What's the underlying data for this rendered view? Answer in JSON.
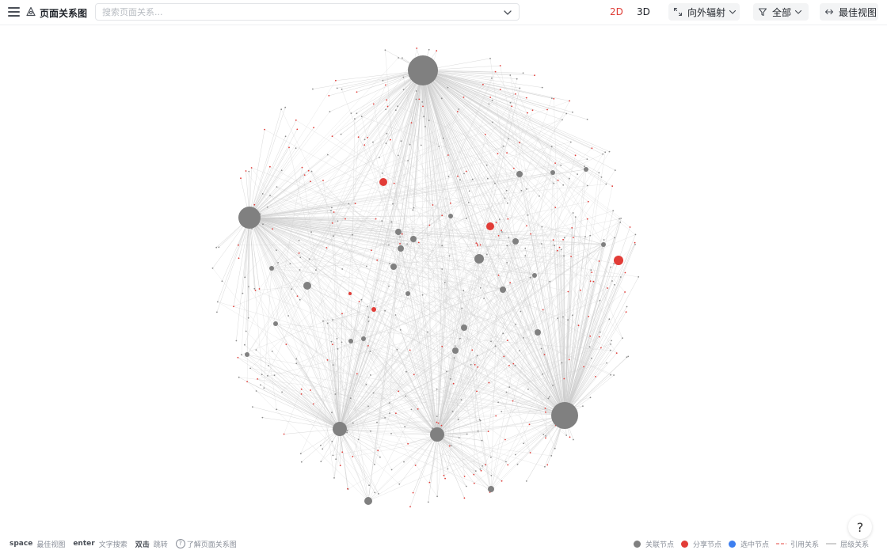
{
  "header": {
    "title": "页面关系图",
    "search_placeholder": "搜索页面关系...",
    "mode_2d": "2D",
    "mode_3d": "3D",
    "direction_label": "向外辐射",
    "filter_label": "全部",
    "best_view_label": "最佳视图"
  },
  "icons": {
    "menu": "hamburger-menu-icon",
    "app": "graph-icon",
    "search_dropdown": "chevron-down-icon",
    "direction": "radiate-icon",
    "filter": "filter-icon",
    "best_view": "arrows-horizontal-icon",
    "help": "question-icon"
  },
  "shortcuts": [
    {
      "key": "space",
      "desc": "最佳视图"
    },
    {
      "key": "enter",
      "desc": "文字搜索"
    },
    {
      "key": "双击",
      "desc": "跳转"
    }
  ],
  "learn_more": "了解页面关系图",
  "help_symbol": "?",
  "legend": {
    "related_node": "关联节点",
    "shared_node": "分享节点",
    "selected_node": "选中节点",
    "reference_relation": "引用关系",
    "hierarchy_relation": "层级关系"
  },
  "colors": {
    "accent": "#e0403a",
    "related_node": "#808080",
    "shared_node": "#e23c37",
    "selected_node": "#3d7ff0",
    "edge": "#cccccc",
    "reference_line": "#f2a3a0",
    "hierarchy_line": "#d0d0d0"
  }
}
